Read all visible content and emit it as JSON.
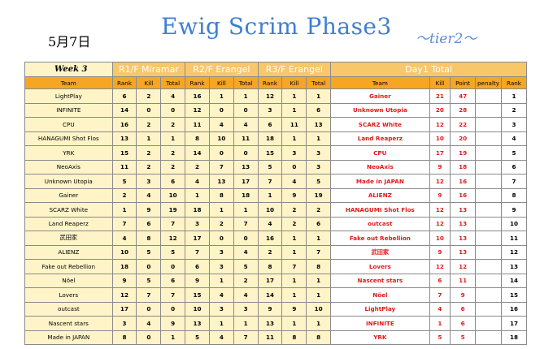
{
  "header": {
    "date": "5月7日",
    "title": "Ewig Scrim Phase3",
    "tier": "〜tier2〜"
  },
  "table": {
    "week_label": "Week 3",
    "groups": [
      "R1/F Miramar",
      "R2/F Erangel",
      "R3/F Erangel",
      "Day1 Total"
    ],
    "left_headers": [
      "Team",
      "Rank",
      "Kill",
      "Total",
      "Rank",
      "Kill",
      "Total",
      "Rank",
      "Kill",
      "Total"
    ],
    "right_headers": [
      "Team",
      "Kill",
      "Point",
      "penalty",
      "Rank"
    ],
    "left_rows": [
      {
        "team": "LightPlay",
        "r1": [
          "6",
          "2",
          "4"
        ],
        "r2": [
          "16",
          "1",
          "1"
        ],
        "r3": [
          "12",
          "1",
          "1"
        ]
      },
      {
        "team": "INFINITE",
        "r1": [
          "14",
          "0",
          "0"
        ],
        "r2": [
          "12",
          "0",
          "0"
        ],
        "r3": [
          "3",
          "1",
          "6"
        ]
      },
      {
        "team": "CPU",
        "r1": [
          "16",
          "2",
          "2"
        ],
        "r2": [
          "11",
          "4",
          "4"
        ],
        "r3": [
          "6",
          "11",
          "13"
        ]
      },
      {
        "team": "HANAGUMI Shot Flos",
        "r1": [
          "13",
          "1",
          "1"
        ],
        "r2": [
          "8",
          "10",
          "11"
        ],
        "r3": [
          "18",
          "1",
          "1"
        ]
      },
      {
        "team": "YRK",
        "r1": [
          "15",
          "2",
          "2"
        ],
        "r2": [
          "14",
          "0",
          "0"
        ],
        "r3": [
          "15",
          "3",
          "3"
        ]
      },
      {
        "team": "NeoAxis",
        "r1": [
          "11",
          "2",
          "2"
        ],
        "r2": [
          "2",
          "7",
          "13"
        ],
        "r3": [
          "5",
          "0",
          "3"
        ]
      },
      {
        "team": "Unknown Utopia",
        "r1": [
          "5",
          "3",
          "6"
        ],
        "r2": [
          "4",
          "13",
          "17"
        ],
        "r3": [
          "7",
          "4",
          "5"
        ]
      },
      {
        "team": "Gainer",
        "r1": [
          "2",
          "4",
          "10"
        ],
        "r2": [
          "1",
          "8",
          "18"
        ],
        "r3": [
          "1",
          "9",
          "19"
        ]
      },
      {
        "team": "SCARZ White",
        "r1": [
          "1",
          "9",
          "19"
        ],
        "r2": [
          "18",
          "1",
          "1"
        ],
        "r3": [
          "10",
          "2",
          "2"
        ]
      },
      {
        "team": "Land Reaperz",
        "r1": [
          "7",
          "6",
          "7"
        ],
        "r2": [
          "3",
          "2",
          "7"
        ],
        "r3": [
          "4",
          "2",
          "6"
        ]
      },
      {
        "team": "武田家",
        "r1": [
          "4",
          "8",
          "12"
        ],
        "r2": [
          "17",
          "0",
          "0"
        ],
        "r3": [
          "16",
          "1",
          "1"
        ]
      },
      {
        "team": "ALIENZ",
        "r1": [
          "10",
          "5",
          "5"
        ],
        "r2": [
          "7",
          "3",
          "4"
        ],
        "r3": [
          "2",
          "1",
          "7"
        ]
      },
      {
        "team": "Fake out Rebellion",
        "r1": [
          "18",
          "0",
          "0"
        ],
        "r2": [
          "6",
          "3",
          "5"
        ],
        "r3": [
          "8",
          "7",
          "8"
        ]
      },
      {
        "team": "Nöel",
        "r1": [
          "9",
          "5",
          "6"
        ],
        "r2": [
          "9",
          "1",
          "2"
        ],
        "r3": [
          "17",
          "1",
          "1"
        ]
      },
      {
        "team": "Lovers",
        "r1": [
          "12",
          "7",
          "7"
        ],
        "r2": [
          "15",
          "4",
          "4"
        ],
        "r3": [
          "14",
          "1",
          "1"
        ]
      },
      {
        "team": "outcast",
        "r1": [
          "17",
          "0",
          "0"
        ],
        "r2": [
          "10",
          "3",
          "3"
        ],
        "r3": [
          "9",
          "9",
          "10"
        ]
      },
      {
        "team": "Nascent stars",
        "r1": [
          "3",
          "4",
          "9"
        ],
        "r2": [
          "13",
          "1",
          "1"
        ],
        "r3": [
          "13",
          "1",
          "1"
        ]
      },
      {
        "team": "Made in JAPAN",
        "r1": [
          "8",
          "0",
          "1"
        ],
        "r2": [
          "5",
          "4",
          "7"
        ],
        "r3": [
          "11",
          "8",
          "8"
        ]
      }
    ],
    "right_rows": [
      {
        "team": "Gainer",
        "kill": "21",
        "point": "47",
        "penalty": "",
        "rank": "1"
      },
      {
        "team": "Unknown Utopia",
        "kill": "20",
        "point": "28",
        "penalty": "",
        "rank": "2"
      },
      {
        "team": "SCARZ White",
        "kill": "12",
        "point": "22",
        "penalty": "",
        "rank": "3"
      },
      {
        "team": "Land Reaperz",
        "kill": "10",
        "point": "20",
        "penalty": "",
        "rank": "4"
      },
      {
        "team": "CPU",
        "kill": "17",
        "point": "19",
        "penalty": "",
        "rank": "5"
      },
      {
        "team": "NeoAxis",
        "kill": "9",
        "point": "18",
        "penalty": "",
        "rank": "6"
      },
      {
        "team": "Made in JAPAN",
        "kill": "12",
        "point": "16",
        "penalty": "",
        "rank": "7"
      },
      {
        "team": "ALIENZ",
        "kill": "9",
        "point": "16",
        "penalty": "",
        "rank": "8"
      },
      {
        "team": "HANAGUMI Shot Flos",
        "kill": "12",
        "point": "13",
        "penalty": "",
        "rank": "9"
      },
      {
        "team": "outcast",
        "kill": "12",
        "point": "13",
        "penalty": "",
        "rank": "10"
      },
      {
        "team": "Fake out Rebellion",
        "kill": "10",
        "point": "13",
        "penalty": "",
        "rank": "11"
      },
      {
        "team": "武田家",
        "kill": "9",
        "point": "13",
        "penalty": "",
        "rank": "12"
      },
      {
        "team": "Lovers",
        "kill": "12",
        "point": "12",
        "penalty": "",
        "rank": "13"
      },
      {
        "team": "Nascent stars",
        "kill": "6",
        "point": "11",
        "penalty": "",
        "rank": "14"
      },
      {
        "team": "Nöel",
        "kill": "7",
        "point": "9",
        "penalty": "",
        "rank": "15"
      },
      {
        "team": "LightPlay",
        "kill": "4",
        "point": "6",
        "penalty": "",
        "rank": "16"
      },
      {
        "team": "INFINITE",
        "kill": "1",
        "point": "6",
        "penalty": "",
        "rank": "17"
      },
      {
        "team": "YRK",
        "kill": "5",
        "point": "5",
        "penalty": "",
        "rank": "18"
      }
    ]
  },
  "colors": {
    "title": "#3f7fd0",
    "header_orange": "#f6a623",
    "group_orange": "#f8c76a",
    "row_yellow": "#fff4c8",
    "red_text": "#e01a1a"
  }
}
